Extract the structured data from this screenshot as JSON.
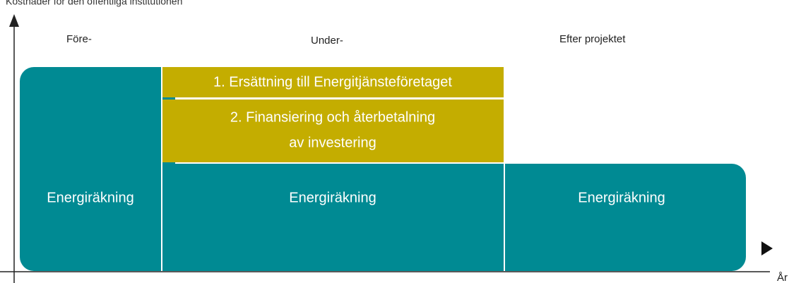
{
  "header": {
    "title": "Kostnader för den offentliga institutionen"
  },
  "phases": [
    "Före-",
    "Under-",
    "Efter projektet"
  ],
  "components": {
    "compensation": "1. Ersättning till Energitjänsteföretaget",
    "financing": [
      "2. Finansiering och återbetalning",
      "av investering"
    ]
  },
  "boxes": [
    "Energiräkning",
    "Energiräkning",
    "Energiräkning"
  ],
  "axis": {
    "x_label": "År"
  }
}
